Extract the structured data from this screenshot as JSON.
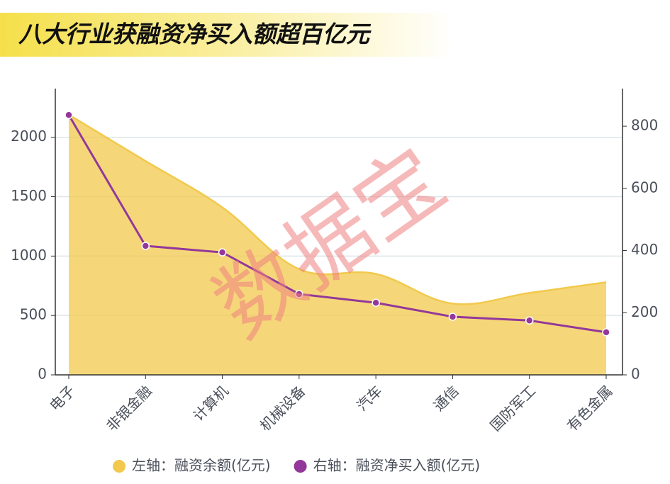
{
  "chart_data": {
    "type": "area-line",
    "title": "八大行业获融资净买入额超百亿元",
    "watermark": "数据宝",
    "categories": [
      "电子",
      "非银金融",
      "计算机",
      "机械设备",
      "汽车",
      "通信",
      "国防军工",
      "有色金属"
    ],
    "series": [
      {
        "name": "左轴：融资余额(亿元)",
        "color": "#f2c94c",
        "type": "area",
        "axis": "y",
        "values": [
          2190,
          1800,
          1410,
          890,
          850,
          600,
          690,
          780
        ]
      },
      {
        "name": "右轴：融资净买入额(亿元)",
        "color": "#93389a",
        "type": "line",
        "axis": "y2",
        "values": [
          836,
          415,
          394,
          260,
          232,
          187,
          175,
          137
        ]
      }
    ],
    "ylim": [
      0,
      2410
    ],
    "yticks": [
      0,
      500,
      1000,
      1500,
      2000
    ],
    "y2lim": [
      0,
      921
    ],
    "y2ticks": [
      0,
      200,
      400,
      600,
      800
    ],
    "grid": true
  }
}
